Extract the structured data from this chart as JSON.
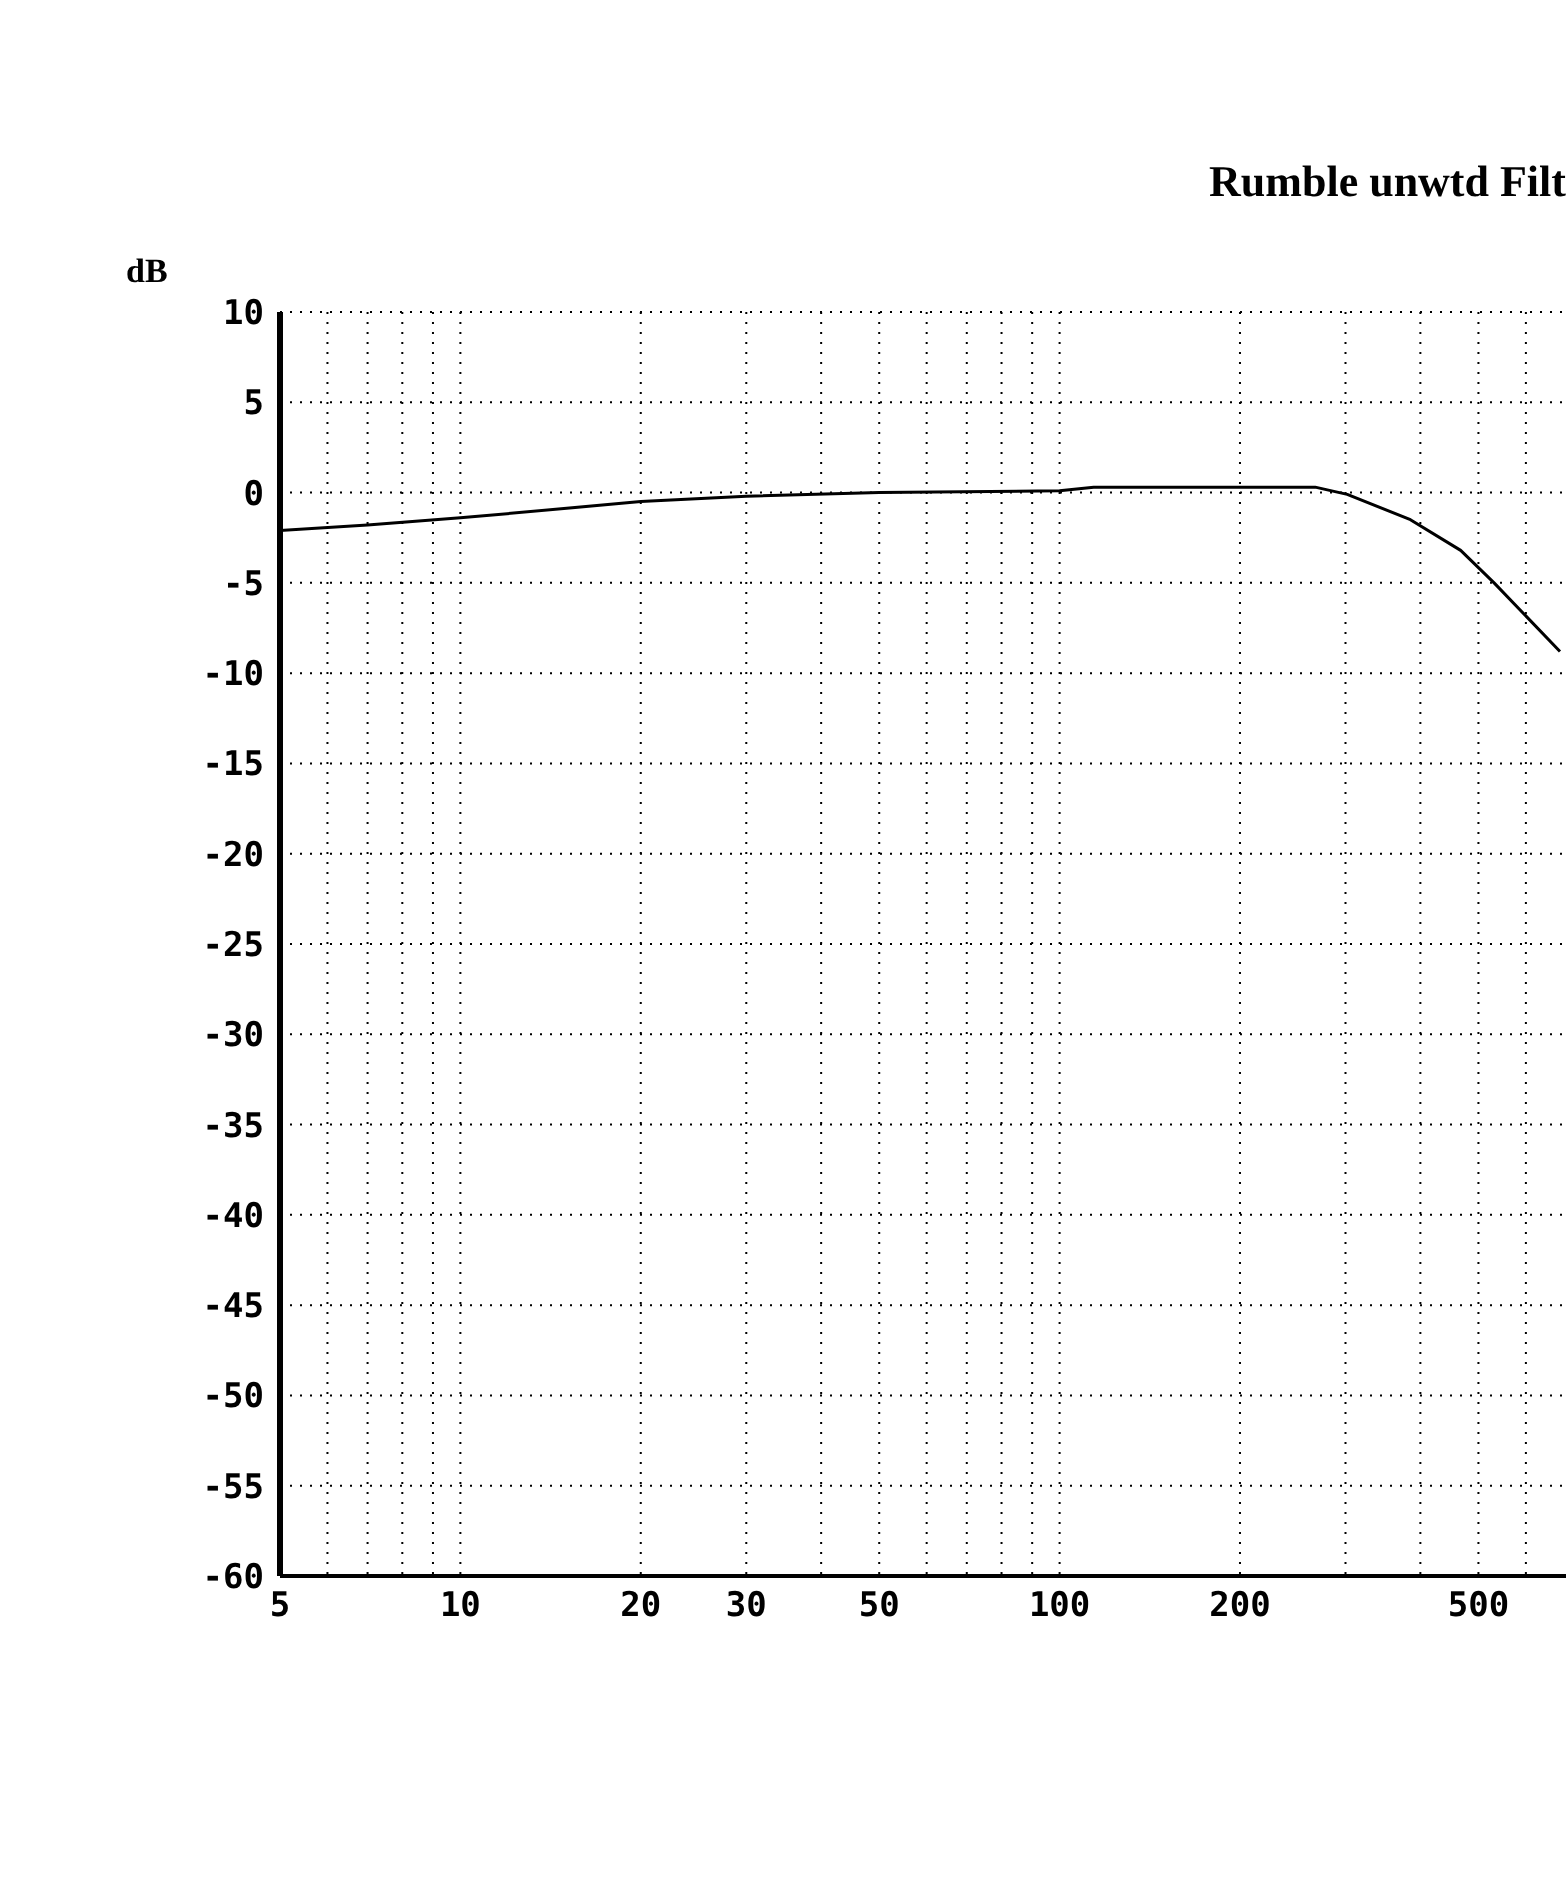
{
  "chart_data": {
    "type": "line",
    "title": "Rumble unwtd Filt",
    "ylabel": "dB",
    "x": [
      5,
      7,
      10,
      20,
      30,
      50,
      100,
      114,
      267,
      302,
      385,
      467,
      531,
      684
    ],
    "series": [
      {
        "color": "#000000",
        "values": [
          -2.1,
          -1.8,
          -1.4,
          -0.5,
          -0.2,
          0,
          0.1,
          0.3,
          0.3,
          -0.1,
          -1.5,
          -3.2,
          -5,
          -8.8
        ]
      }
    ],
    "log": "x",
    "xlim": [
      5,
      700
    ],
    "xticks": [
      5,
      {
        "value": 6,
        "label": null
      },
      {
        "value": 7,
        "label": null
      },
      {
        "value": 8,
        "label": null
      },
      {
        "value": 9,
        "label": null
      },
      10,
      20,
      30,
      {
        "value": 40,
        "label": null
      },
      50,
      {
        "value": 60,
        "label": null
      },
      {
        "value": 70,
        "label": null
      },
      {
        "value": 80,
        "label": null
      },
      {
        "value": 90,
        "label": null
      },
      100,
      200,
      {
        "value": 300,
        "label": null
      },
      {
        "value": 400,
        "label": null
      },
      500,
      {
        "value": 600,
        "label": null
      }
    ],
    "ylim": [
      -60,
      10
    ],
    "yticks": [
      -60,
      -55,
      -50,
      -45,
      -40,
      -35,
      -30,
      -25,
      -20,
      -15,
      -10,
      -5,
      0,
      5,
      10
    ],
    "grid": true,
    "legend": false,
    "marker": "none",
    "line_style": "solid"
  }
}
